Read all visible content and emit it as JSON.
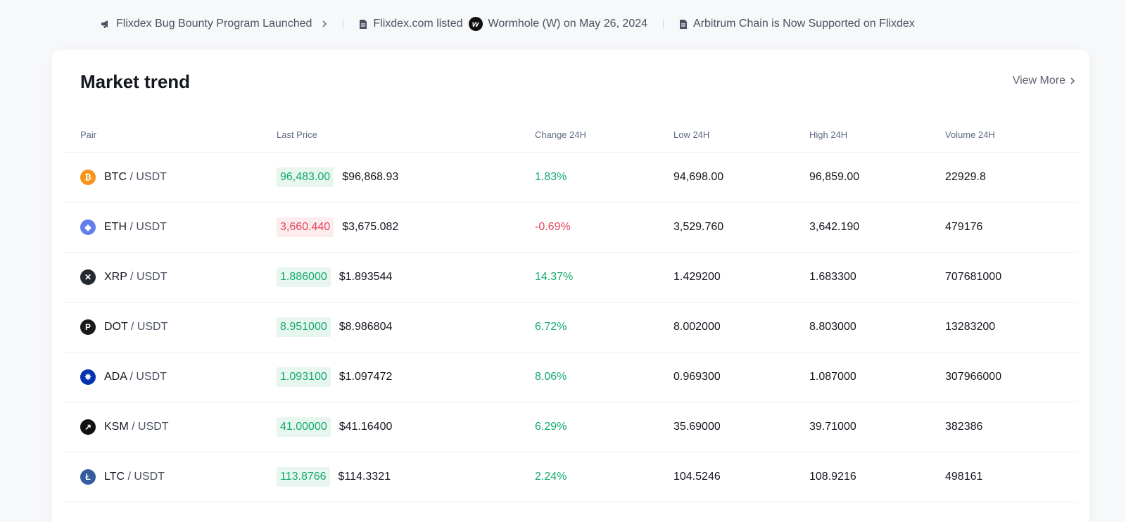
{
  "ticker": {
    "items": [
      {
        "text": "Flixdex Bug Bounty Program Launched"
      },
      {
        "text_before": "Flixdex.com listed",
        "text_after": "Wormhole (W) on May 26, 2024"
      },
      {
        "text": "Arbitrum Chain is Now Supported on Flixdex"
      }
    ]
  },
  "market": {
    "title": "Market trend",
    "view_more": "View More",
    "columns": {
      "pair": "Pair",
      "last": "Last Price",
      "change": "Change 24H",
      "low": "Low 24H",
      "high": "High 24H",
      "volume": "Volume 24H"
    },
    "rows": [
      {
        "base": "BTC",
        "quote": "USDT",
        "icon": "btc-icon",
        "color": "#f7931a",
        "price": "96,483.00",
        "usd": "$96,868.93",
        "change": "1.83%",
        "dir": "up",
        "low": "94,698.00",
        "high": "96,859.00",
        "volume": "22929.8"
      },
      {
        "base": "ETH",
        "quote": "USDT",
        "icon": "eth-icon",
        "color": "#627eea",
        "price": "3,660.440",
        "usd": "$3,675.082",
        "change": "-0.69%",
        "dir": "down",
        "low": "3,529.760",
        "high": "3,642.190",
        "volume": "479176"
      },
      {
        "base": "XRP",
        "quote": "USDT",
        "icon": "xrp-icon",
        "color": "#23292f",
        "price": "1.886000",
        "usd": "$1.893544",
        "change": "14.37%",
        "dir": "up",
        "low": "1.429200",
        "high": "1.683300",
        "volume": "707681000"
      },
      {
        "base": "DOT",
        "quote": "USDT",
        "icon": "dot-icon",
        "color": "#1a1a1a",
        "price": "8.951000",
        "usd": "$8.986804",
        "change": "6.72%",
        "dir": "up",
        "low": "8.002000",
        "high": "8.803000",
        "volume": "13283200"
      },
      {
        "base": "ADA",
        "quote": "USDT",
        "icon": "ada-icon",
        "color": "#0033ad",
        "price": "1.093100",
        "usd": "$1.097472",
        "change": "8.06%",
        "dir": "up",
        "low": "0.969300",
        "high": "1.087000",
        "volume": "307966000"
      },
      {
        "base": "KSM",
        "quote": "USDT",
        "icon": "ksm-icon",
        "color": "#111111",
        "price": "41.00000",
        "usd": "$41.16400",
        "change": "6.29%",
        "dir": "up",
        "low": "35.69000",
        "high": "39.71000",
        "volume": "382386"
      },
      {
        "base": "LTC",
        "quote": "USDT",
        "icon": "ltc-icon",
        "color": "#345d9d",
        "price": "113.8766",
        "usd": "$114.3321",
        "change": "2.24%",
        "dir": "up",
        "low": "104.5246",
        "high": "108.9216",
        "volume": "498161"
      }
    ]
  }
}
